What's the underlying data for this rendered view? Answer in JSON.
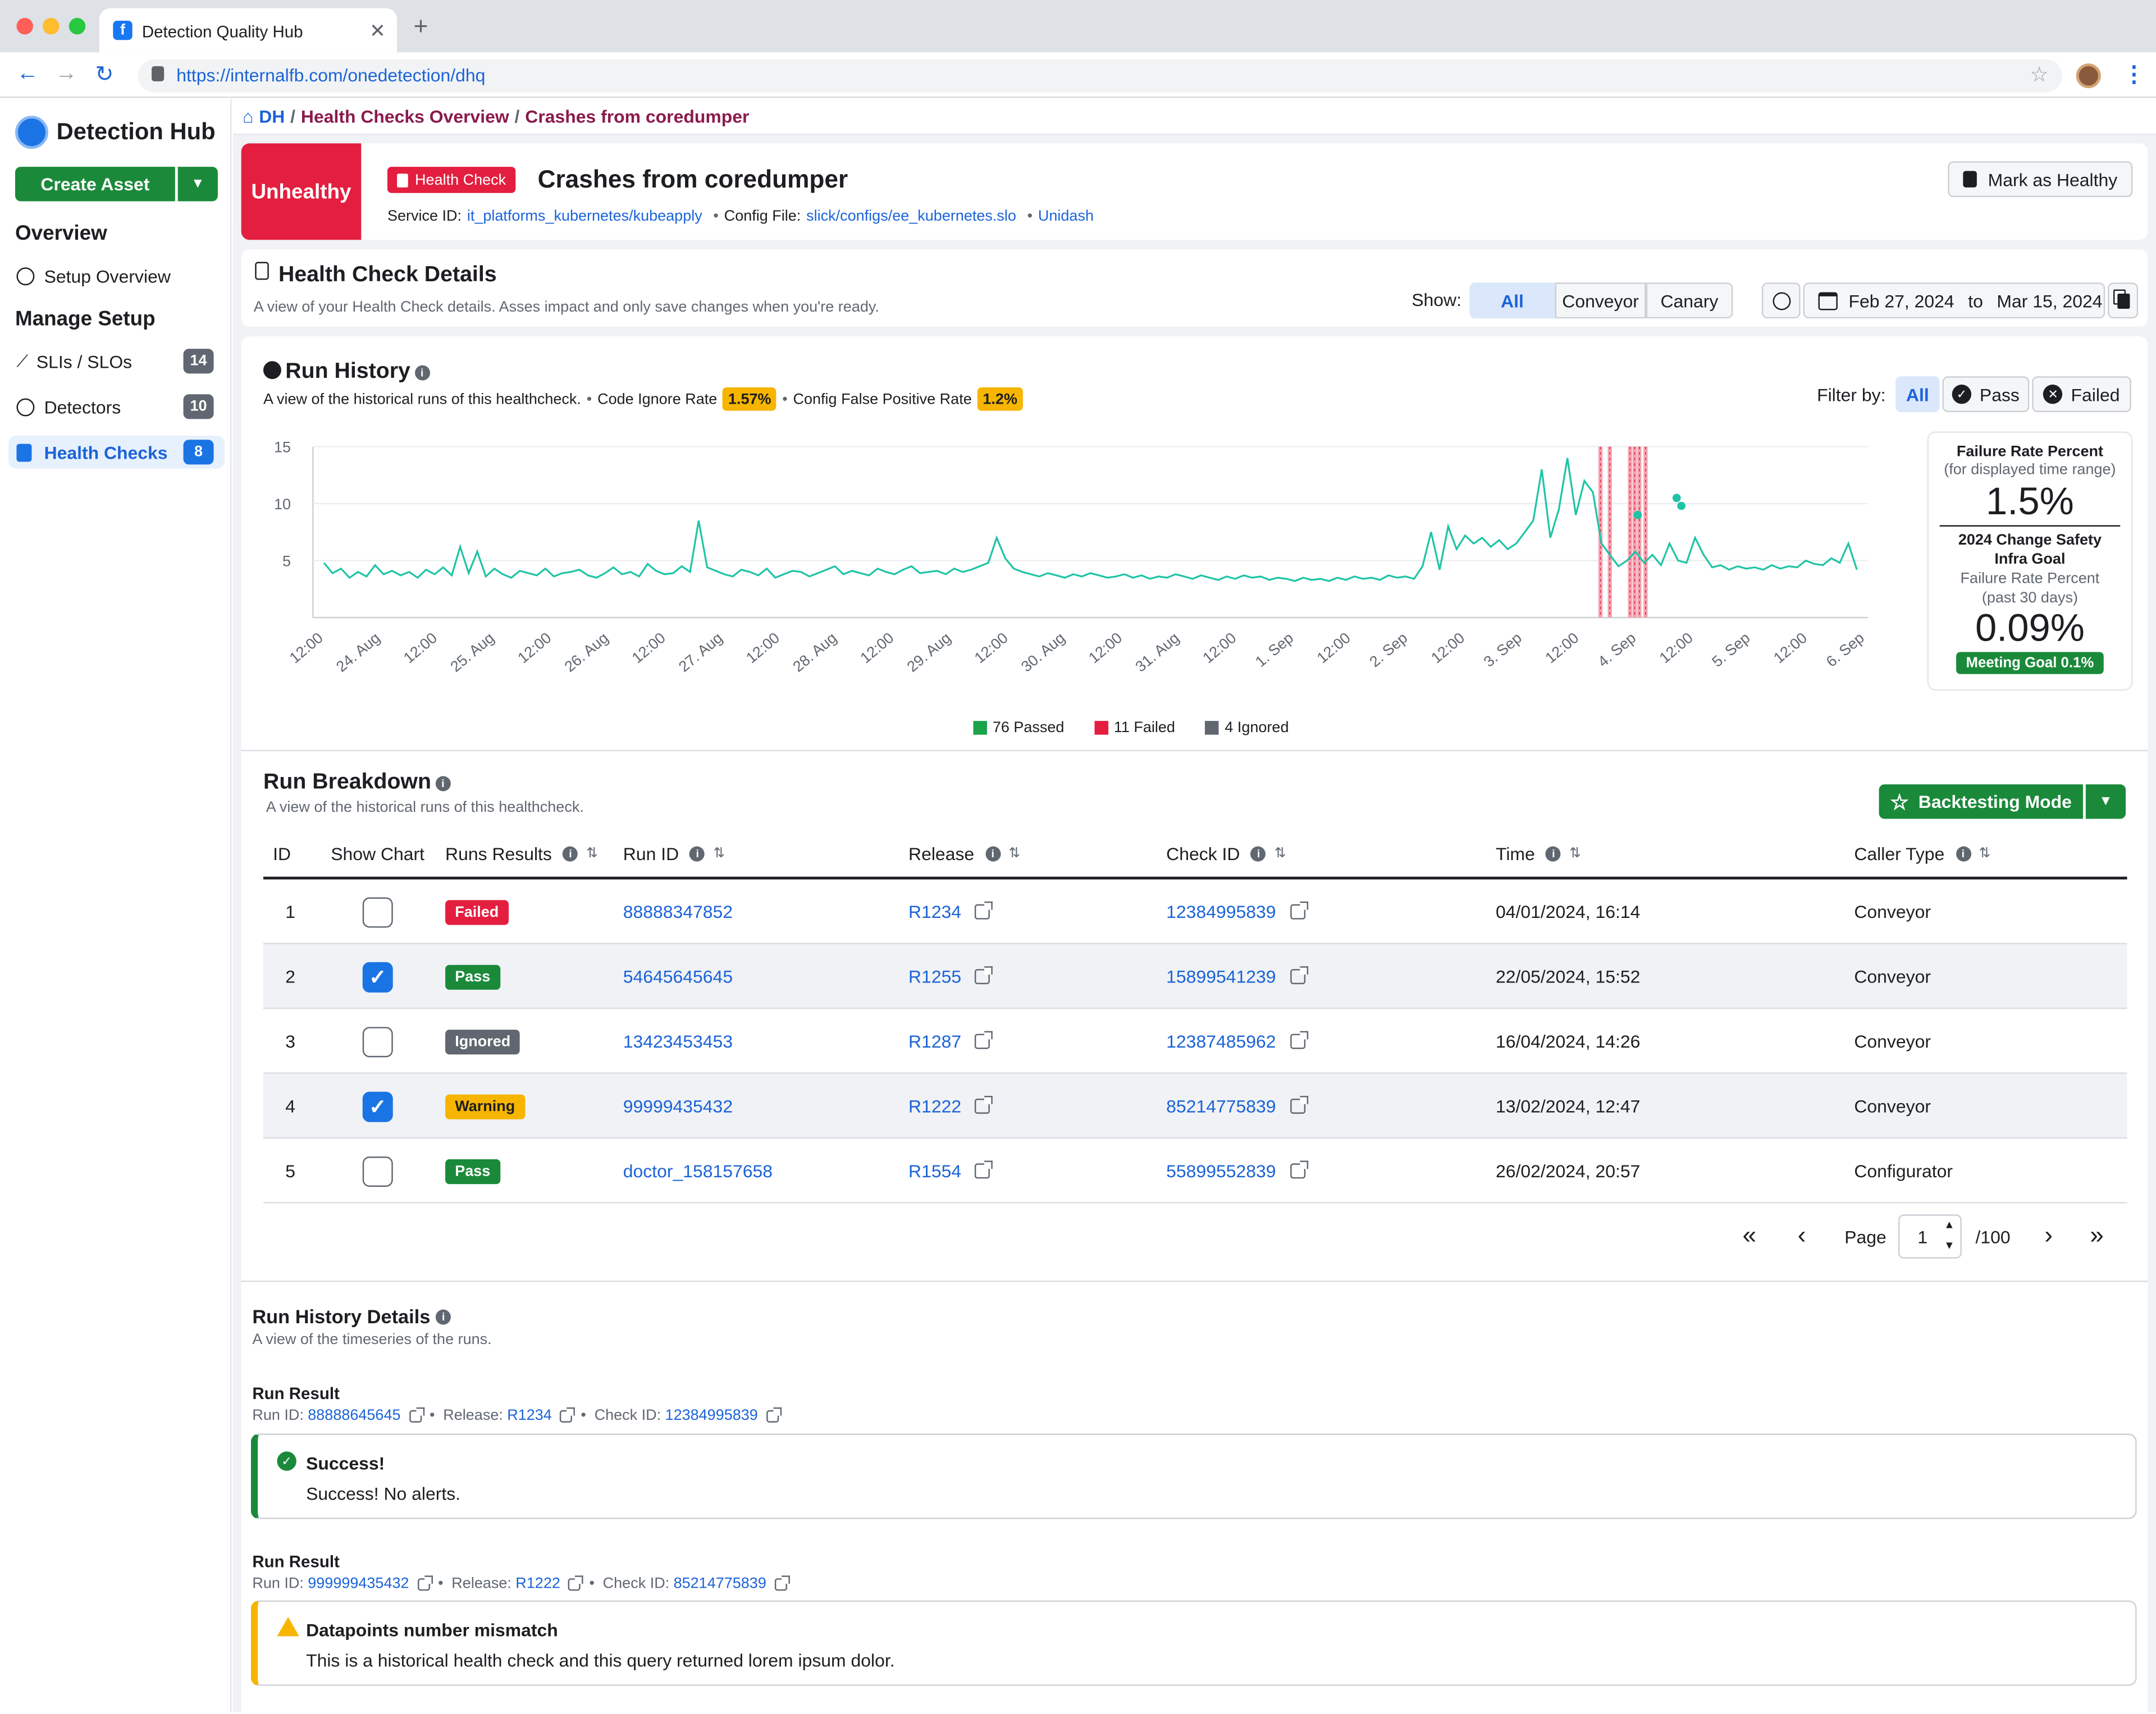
{
  "browser": {
    "tab_title": "Detection Quality Hub",
    "url": "https://internalfb.com/onedetection/dhq"
  },
  "sidebar": {
    "app_title": "Detection Hub",
    "create_label": "Create Asset",
    "section_overview": "Overview",
    "setup_overview": "Setup Overview",
    "section_manage": "Manage Setup",
    "items": [
      {
        "label": "SLIs / SLOs",
        "count": "14"
      },
      {
        "label": "Detectors",
        "count": "10"
      },
      {
        "label": "Health Checks",
        "count": "8"
      }
    ]
  },
  "breadcrumb": {
    "root": "DH",
    "sep": "/",
    "level1": "Health Checks Overview",
    "level2": "Crashes from coredumper"
  },
  "header": {
    "status": "Unhealthy",
    "type_badge": "Health Check",
    "title": "Crashes from coredumper",
    "service_label": "Service ID:",
    "service_value": "it_platforms_kubernetes/kubeapply",
    "config_label": "Config File:",
    "config_value": "slick/configs/ee_kubernetes.slo",
    "extra_link": "Unidash",
    "bullet": "•",
    "mark_healthy": "Mark as Healthy"
  },
  "details": {
    "title": "Health Check Details",
    "subtitle": "A view of your Health Check details. Asses impact and only save changes when you're ready.",
    "show_label": "Show:",
    "show_options": [
      "All",
      "Conveyor",
      "Canary"
    ],
    "date_from": "Feb 27, 2024",
    "date_to_label": "to",
    "date_to": "Mar 15, 2024"
  },
  "run_history": {
    "title": "Run History",
    "subtitle": "A view of the historical runs of this healthcheck.",
    "code_ignore_label": "Code Ignore Rate",
    "code_ignore_value": "1.57%",
    "config_fp_label": "Config False Positive Rate",
    "config_fp_value": "1.2%",
    "filter_label": "Filter by:",
    "filter_options": [
      "All",
      "Pass",
      "Failed"
    ],
    "stats": {
      "fail_title": "Failure Rate Percent",
      "fail_sub": "(for displayed time range)",
      "fail_value": "1.5%",
      "goal_title1": "2024 Change Safety",
      "goal_title2": "Infra Goal",
      "goal_sub1": "Failure Rate Percent",
      "goal_sub2": "(past 30 days)",
      "goal_value": "0.09%",
      "goal_badge": "Meeting Goal 0.1%"
    },
    "legend": [
      {
        "label": "76 Passed",
        "color": "#1aa34a"
      },
      {
        "label": "11 Failed",
        "color": "#e41e3f"
      },
      {
        "label": "4 Ignored",
        "color": "#606770"
      }
    ]
  },
  "chart_data": {
    "type": "line",
    "y_ticks": [
      "15",
      "10",
      "5"
    ],
    "ylim": [
      0,
      15
    ],
    "x_ticks": [
      "12:00",
      "24. Aug",
      "12:00",
      "25. Aug",
      "12:00",
      "26. Aug",
      "12:00",
      "27. Aug",
      "12:00",
      "28. Aug",
      "12:00",
      "29. Aug",
      "12:00",
      "30. Aug",
      "12:00",
      "31. Aug",
      "12:00",
      "1. Sep",
      "12:00",
      "2. Sep",
      "12:00",
      "3. Sep",
      "12:00",
      "4. Sep",
      "12:00",
      "5. Sep",
      "12:00",
      "6. Sep"
    ],
    "line_color": "#1ec4a5",
    "series": [
      {
        "values": [
          4.8,
          3.9,
          4.3,
          3.5,
          4.0,
          3.6,
          4.6,
          3.8,
          4.1,
          3.7,
          4.0,
          3.5,
          4.2,
          3.8,
          4.4,
          3.7,
          6.2,
          3.9,
          5.8,
          3.6,
          4.3,
          3.8,
          3.5,
          4.1,
          3.9,
          3.7,
          4.3,
          3.6,
          3.9,
          4.0,
          4.2,
          3.7,
          3.5,
          3.9,
          4.4,
          3.8,
          4.0,
          3.6,
          4.7,
          4.1,
          3.8,
          3.9,
          4.5,
          4.0,
          8.5,
          4.4,
          4.1,
          3.8,
          3.6,
          4.2,
          4.0,
          3.7,
          4.3,
          3.5,
          3.8,
          4.1,
          4.0,
          3.6,
          3.9,
          4.2,
          4.5,
          3.8,
          4.1,
          3.9,
          3.7,
          4.3,
          4.0,
          3.8,
          4.2,
          4.5,
          3.9,
          4.0,
          4.1,
          3.8,
          4.3,
          4.0,
          4.2,
          4.5,
          4.8,
          7.0,
          5.2,
          4.3,
          4.0,
          3.8,
          3.6,
          3.9,
          3.7,
          3.5,
          3.8,
          3.6,
          3.9,
          3.7,
          3.5,
          3.6,
          3.8,
          3.5,
          3.7,
          3.4,
          3.6,
          3.5,
          3.8,
          3.6,
          3.4,
          3.7,
          3.5,
          3.3,
          3.6,
          3.4,
          3.7,
          3.5,
          3.6,
          3.3,
          3.5,
          3.4,
          3.2,
          3.5,
          3.3,
          3.4,
          3.2,
          3.5,
          3.3,
          3.6,
          3.4,
          3.5,
          3.3,
          3.7,
          3.5,
          3.6,
          3.4,
          4.5,
          7.5,
          4.2,
          8.0,
          6.0,
          7.2,
          6.5,
          7.0,
          6.2,
          6.8,
          6.0,
          6.5,
          7.5,
          8.5,
          13.0,
          7.0,
          9.5,
          14.0,
          9.0,
          12.0,
          11.0,
          6.5,
          5.5,
          4.5,
          5.0,
          5.8,
          4.8,
          5.5,
          4.6,
          6.5,
          5.0,
          4.8,
          7.0,
          5.5,
          4.4,
          4.6,
          4.2,
          4.5,
          4.3,
          4.4,
          4.2,
          4.6,
          4.3,
          4.5,
          4.4,
          5.0,
          4.7,
          4.6,
          5.2,
          4.8,
          6.5,
          4.2
        ]
      }
    ],
    "failure_bands": [
      0.828,
      0.834,
      0.847,
      0.85,
      0.853,
      0.857
    ],
    "markers": [
      {
        "x": 0.877,
        "y": 10.5
      },
      {
        "x": 0.88,
        "y": 9.8
      },
      {
        "x": 0.852,
        "y": 9.0
      }
    ]
  },
  "breakdown": {
    "title": "Run Breakdown",
    "subtitle": "A view of the historical runs of this healthcheck.",
    "backtest": "Backtesting Mode",
    "columns": [
      "ID",
      "Show Chart",
      "Runs Results",
      "Run ID",
      "Release",
      "Check ID",
      "Time",
      "Caller Type"
    ],
    "rows": [
      {
        "id": "1",
        "checked": false,
        "result": "Failed",
        "color": "#e41e3f",
        "text": "#fff",
        "run_id": "88888347852",
        "release": "R1234",
        "check_id": "12384995839",
        "time": "04/01/2024, 16:14",
        "caller": "Conveyor"
      },
      {
        "id": "2",
        "checked": true,
        "result": "Pass",
        "color": "#1a8a3a",
        "text": "#fff",
        "run_id": "54645645645",
        "release": "R1255",
        "check_id": "15899541239",
        "time": "22/05/2024, 15:52",
        "caller": "Conveyor"
      },
      {
        "id": "3",
        "checked": false,
        "result": "Ignored",
        "color": "#606770",
        "text": "#fff",
        "run_id": "13423453453",
        "release": "R1287",
        "check_id": "12387485962",
        "time": "16/04/2024, 14:26",
        "caller": "Conveyor"
      },
      {
        "id": "4",
        "checked": true,
        "result": "Warning",
        "color": "#f7b500",
        "text": "#1c1e21",
        "run_id": "99999435432",
        "release": "R1222",
        "check_id": "85214775839",
        "time": "13/02/2024, 12:47",
        "caller": "Conveyor"
      },
      {
        "id": "5",
        "checked": false,
        "result": "Pass",
        "color": "#1a8a3a",
        "text": "#fff",
        "run_id": "doctor_158157658",
        "release": "R1554",
        "check_id": "55899552839",
        "time": "26/02/2024, 20:57",
        "caller": "Configurator"
      }
    ],
    "page_label": "Page",
    "page_value": "1",
    "page_total": "/100"
  },
  "history_details": {
    "title": "Run History Details",
    "subtitle": "A view of the timeseries of the runs.",
    "results": [
      {
        "title": "Run Result",
        "run_label": "Run ID:",
        "run_id": "88888645645",
        "release_label": "Release:",
        "release": "R1234",
        "check_label": "Check ID:",
        "check_id": "12384995839",
        "alert_title": "Success!",
        "alert_body": "Success! No alerts.",
        "color": "#1a8a3a"
      },
      {
        "title": "Run Result",
        "run_label": "Run ID:",
        "run_id": "999999435432",
        "release_label": "Release:",
        "release": "R1222",
        "check_label": "Check ID:",
        "check_id": "85214775839",
        "alert_title": "Datapoints number mismatch",
        "alert_body": "This is a historical health check and this query returned lorem ipsum dolor.",
        "color": "#f7b500"
      }
    ]
  }
}
